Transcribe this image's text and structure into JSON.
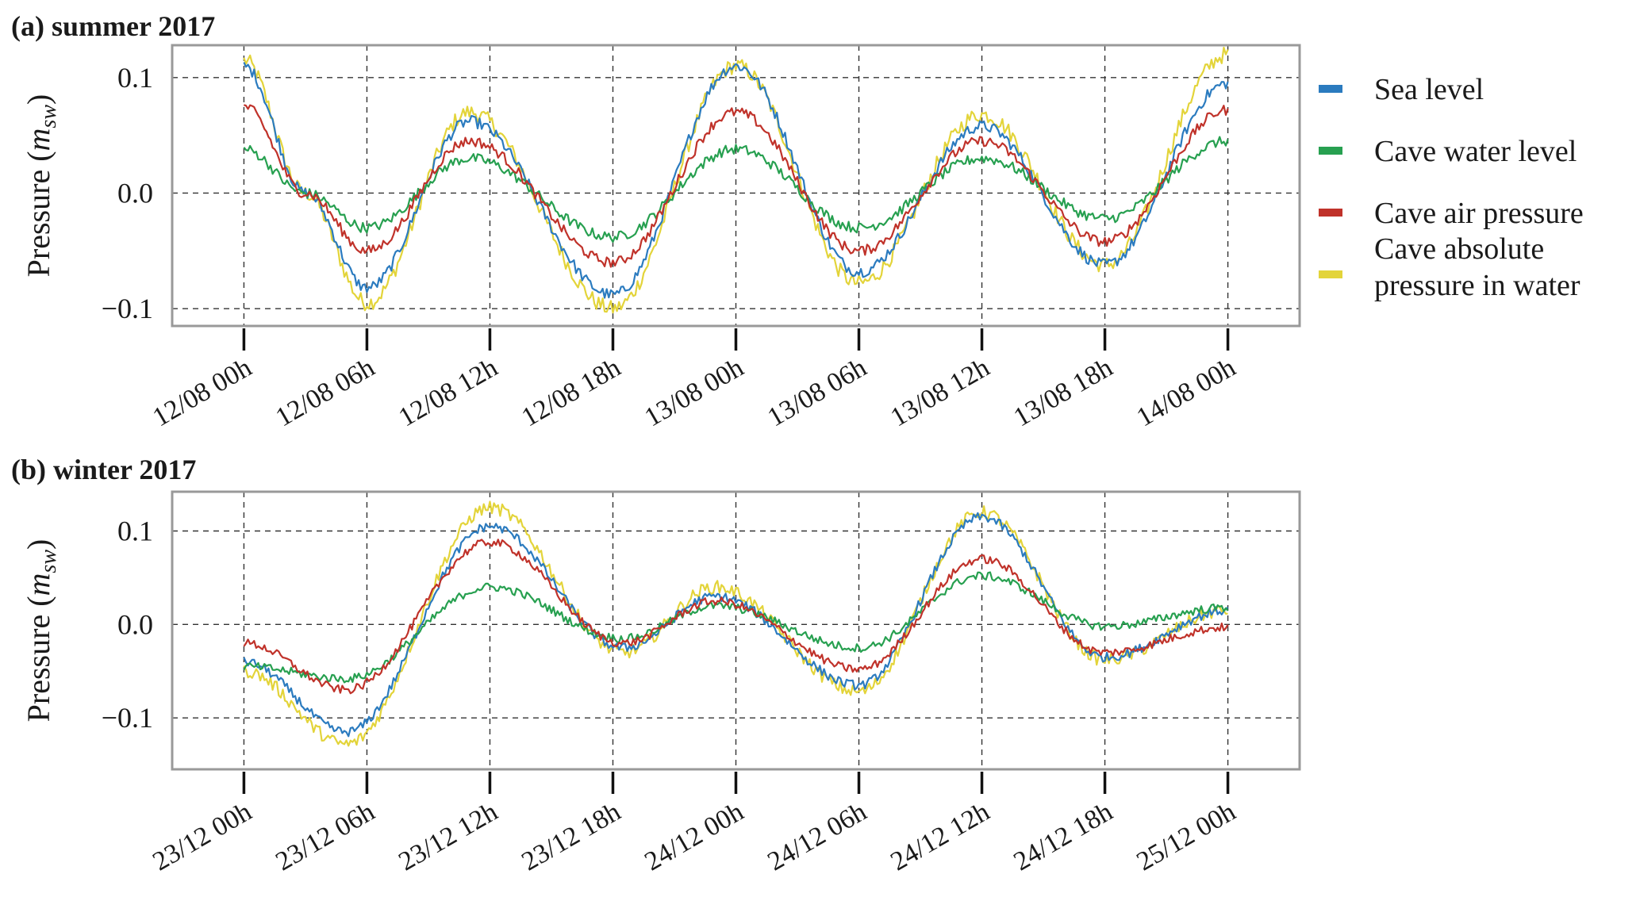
{
  "legend": [
    {
      "label": "Sea level",
      "color": "#2b7bbf"
    },
    {
      "label": "Cave water level",
      "color": "#27a050"
    },
    {
      "label": "Cave air pressure",
      "color": "#c0322a"
    },
    {
      "label": "Cave absolute pressure in water",
      "color": "#e3d43a"
    }
  ],
  "chart_data": [
    {
      "type": "line",
      "title": "(a)  summer 2017",
      "ylabel": "Pressure (m_sw)",
      "ylabel_main": "Pressure (",
      "ylabel_var": "m",
      "ylabel_sub": "sw",
      "ylabel_close": ")",
      "ylim": [
        -0.115,
        0.128
      ],
      "yticks": [
        -0.1,
        0.0,
        0.1
      ],
      "ytick_labels": [
        "−0.1",
        "0.0",
        "0.1"
      ],
      "xlim": [
        -3.5,
        51.5
      ],
      "xticks": [
        0,
        6,
        12,
        18,
        24,
        30,
        36,
        42,
        48
      ],
      "xtick_labels": [
        "12/08 00h",
        "12/08 06h",
        "12/08 12h",
        "12/08 18h",
        "13/08 00h",
        "13/08 06h",
        "13/08 12h",
        "13/08 18h",
        "14/08 00h"
      ],
      "grid": true,
      "legend_position": "right",
      "x_unit": "hours since 12/08 00h",
      "series": [
        {
          "name": "Sea level",
          "color": "#2b7bbf",
          "x": [
            0,
            3,
            6,
            11,
            18,
            24,
            30,
            36,
            42,
            48
          ],
          "values": [
            0.11,
            0.0,
            -0.082,
            0.062,
            -0.088,
            0.11,
            -0.068,
            0.058,
            -0.062,
            0.095
          ]
        },
        {
          "name": "Cave water level",
          "color": "#27a050",
          "x": [
            0,
            3,
            6,
            11,
            18,
            24,
            30,
            36,
            42,
            48
          ],
          "values": [
            0.038,
            0.0,
            -0.03,
            0.03,
            -0.038,
            0.038,
            -0.03,
            0.03,
            -0.022,
            0.045
          ]
        },
        {
          "name": "Cave air pressure",
          "color": "#c0322a",
          "x": [
            0,
            3,
            6,
            11,
            18,
            24,
            30,
            36,
            42,
            48
          ],
          "values": [
            0.075,
            0.0,
            -0.05,
            0.045,
            -0.06,
            0.07,
            -0.05,
            0.045,
            -0.042,
            0.072
          ]
        },
        {
          "name": "Cave absolute pressure in water",
          "color": "#e3d43a",
          "x": [
            0,
            3,
            6,
            11,
            18,
            24,
            30,
            36,
            42,
            48
          ],
          "values": [
            0.115,
            0.0,
            -0.095,
            0.07,
            -0.1,
            0.11,
            -0.078,
            0.068,
            -0.062,
            0.12
          ]
        }
      ]
    },
    {
      "type": "line",
      "title": "(b)  winter 2017",
      "ylabel": "Pressure (m_sw)",
      "ylabel_main": "Pressure (",
      "ylabel_var": "m",
      "ylabel_sub": "sw",
      "ylabel_close": ")",
      "ylim": [
        -0.155,
        0.142
      ],
      "yticks": [
        -0.1,
        0.0,
        0.1
      ],
      "ytick_labels": [
        "−0.1",
        "0.0",
        "0.1"
      ],
      "xlim": [
        -3.5,
        51.5
      ],
      "xticks": [
        0,
        6,
        12,
        18,
        24,
        30,
        36,
        42,
        48
      ],
      "xtick_labels": [
        "23/12 00h",
        "23/12 06h",
        "23/12 12h",
        "23/12 18h",
        "24/12 00h",
        "24/12 06h",
        "24/12 12h",
        "24/12 18h",
        "25/12 00h"
      ],
      "grid": true,
      "x_unit": "hours since 23/12 00h",
      "series": [
        {
          "name": "Sea level",
          "color": "#2b7bbf",
          "x": [
            0,
            5,
            12,
            18.5,
            23,
            30,
            36,
            42,
            48
          ],
          "values": [
            -0.04,
            -0.115,
            0.105,
            -0.025,
            0.03,
            -0.065,
            0.115,
            -0.035,
            0.015
          ]
        },
        {
          "name": "Cave water level",
          "color": "#27a050",
          "x": [
            0,
            5,
            12,
            18.5,
            23,
            30,
            36,
            42,
            48
          ],
          "values": [
            -0.045,
            -0.058,
            0.04,
            -0.015,
            0.02,
            -0.025,
            0.052,
            -0.002,
            0.018
          ]
        },
        {
          "name": "Cave air pressure",
          "color": "#c0322a",
          "x": [
            0,
            5,
            12,
            18.5,
            23,
            30,
            36,
            42,
            48
          ],
          "values": [
            -0.02,
            -0.07,
            0.088,
            -0.02,
            0.025,
            -0.048,
            0.07,
            -0.03,
            -0.003
          ]
        },
        {
          "name": "Cave absolute pressure in water",
          "color": "#e3d43a",
          "x": [
            0,
            5,
            12,
            18.5,
            23,
            30,
            36,
            42,
            48
          ],
          "values": [
            -0.05,
            -0.128,
            0.125,
            -0.03,
            0.04,
            -0.072,
            0.12,
            -0.038,
            0.015
          ]
        }
      ]
    }
  ]
}
